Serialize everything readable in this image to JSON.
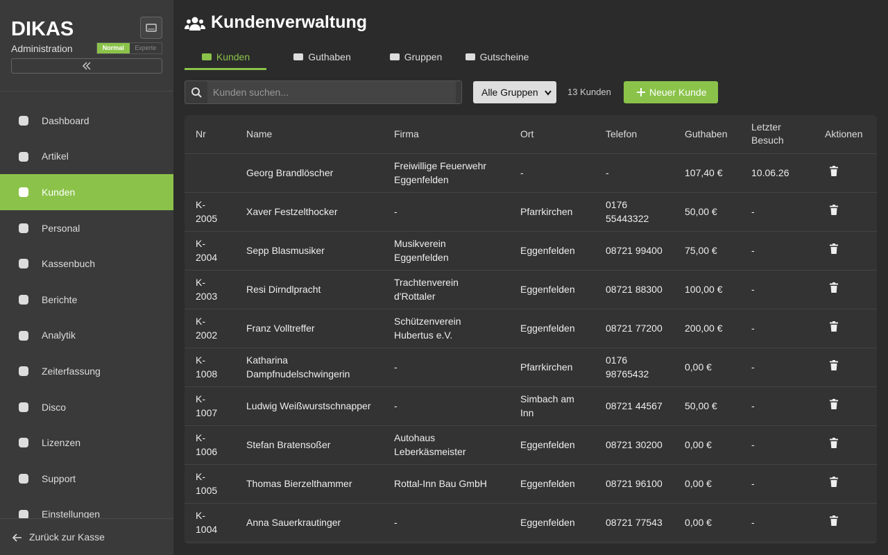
{
  "sidebar": {
    "logo": "DIKAS",
    "subtitle": "Administration",
    "modes": [
      "Normal",
      "Experte"
    ],
    "nav": [
      "Dashboard",
      "Artikel",
      "Kunden",
      "Personal",
      "Kassenbuch",
      "Berichte",
      "Analytik",
      "Zeiterfassung",
      "Disco",
      "Lizenzen",
      "Support",
      "Einstellungen"
    ],
    "active": 2,
    "footer": "Zurück zur Kasse"
  },
  "header": {
    "title": "Kundenverwaltung",
    "tabs": [
      "Kunden",
      "Guthaben",
      "Gruppen",
      "Gutscheine"
    ],
    "active_tab": 0
  },
  "toolbar": {
    "search_placeholder": "Kunden suchen...",
    "group_filter": "Alle Gruppen",
    "count": "13 Kunden",
    "new_button": "Neuer Kunde"
  },
  "table": {
    "headers": [
      "Nr",
      "Name",
      "Firma",
      "Ort",
      "Telefon",
      "Guthaben",
      "Letzter Besuch",
      "Aktionen"
    ],
    "rows": [
      [
        null,
        "Georg Brandlöscher",
        "Freiwillige Feuerwehr Eggenfelden",
        "-",
        "-",
        "107,40 €",
        "10.06.26"
      ],
      [
        "K-2005",
        "Xaver Festzelthocker",
        "-",
        "Pfarrkirchen",
        "0176 55443322",
        "50,00 €",
        "-"
      ],
      [
        "K-2004",
        "Sepp Blasmusiker",
        "Musikverein Eggenfelden",
        "Eggenfelden",
        "08721 99400",
        "75,00 €",
        "-"
      ],
      [
        "K-2003",
        "Resi Dirndlpracht",
        "Trachtenverein d'Rottaler",
        "Eggenfelden",
        "08721 88300",
        "100,00 €",
        "-"
      ],
      [
        "K-2002",
        "Franz Volltreffer",
        "Schützenverein Hubertus e.V.",
        "Eggenfelden",
        "08721 77200",
        "200,00 €",
        "-"
      ],
      [
        "K-1008",
        "Katharina Dampfnudelschwingerin",
        "-",
        "Pfarrkirchen",
        "0176 98765432",
        "0,00 €",
        "-"
      ],
      [
        "K-1007",
        "Ludwig Weißwurstschnapper",
        "-",
        "Simbach am Inn",
        "08721 44567",
        "50,00 €",
        "-"
      ],
      [
        "K-1006",
        "Stefan Bratensoßer",
        "Autohaus Leberkäsmeister",
        "Eggenfelden",
        "08721 30200",
        "0,00 €",
        "-"
      ],
      [
        "K-1005",
        "Thomas Bierzelthammer",
        "Rottal-Inn Bau GmbH",
        "Eggenfelden",
        "08721 96100",
        "0,00 €",
        "-"
      ],
      [
        "K-1004",
        "Anna Sauerkrautinger",
        "-",
        "Eggenfelden",
        "08721 77543",
        "0,00 €",
        "-"
      ]
    ]
  }
}
